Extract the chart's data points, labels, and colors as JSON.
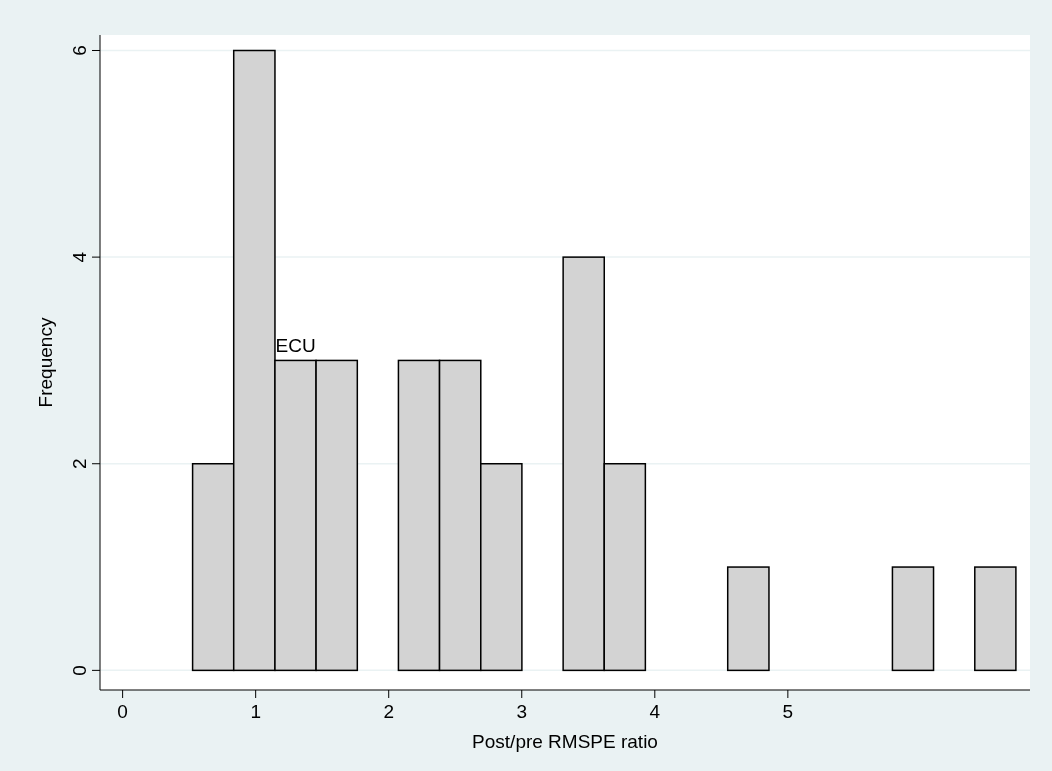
{
  "chart_data": {
    "type": "histogram",
    "xlabel": "Post/pre RMSPE ratio",
    "ylabel": "Frequency",
    "bins": [
      0.526,
      0.835,
      1.145,
      1.454,
      1.764,
      2.073,
      2.382,
      2.692,
      3.001,
      3.311,
      3.62,
      3.929,
      4.239,
      4.548,
      4.858,
      5.167,
      5.476,
      5.786,
      6.095,
      6.405,
      6.714
    ],
    "values": [
      2,
      6,
      3,
      3,
      0,
      3,
      3,
      2,
      0,
      4,
      2,
      0,
      0,
      1,
      0,
      0,
      0,
      1,
      0,
      1
    ],
    "color": "#d3d3d3",
    "xlim": [
      -0.17,
      6.82
    ],
    "xticks": [
      0,
      1,
      2,
      3,
      4,
      5
    ],
    "ylim": [
      -0.19,
      6.15
    ],
    "yticks": [
      0,
      2,
      4,
      6
    ],
    "grid": "y",
    "annotations": [
      {
        "text": "ECU",
        "x": 1.3,
        "y": 3
      }
    ]
  }
}
